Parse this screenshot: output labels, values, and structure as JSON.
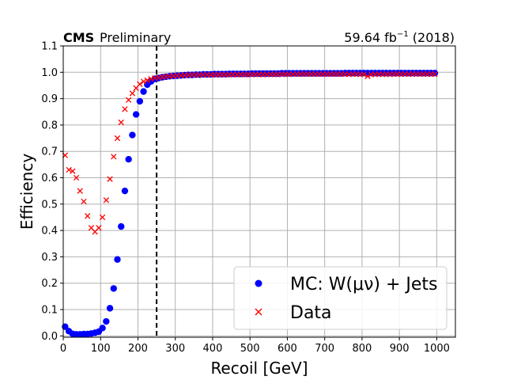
{
  "header": {
    "experiment": "CMS",
    "status": "Preliminary",
    "lumi_value": "59.64 fb",
    "lumi_exp": "−1",
    "lumi_year": " (2018)"
  },
  "chart_data": {
    "type": "scatter",
    "xlabel": "Recoil [GeV]",
    "ylabel": "Efficiency",
    "xlim": [
      0,
      1050
    ],
    "ylim": [
      -0.005,
      1.1
    ],
    "xticks": [
      0,
      100,
      200,
      300,
      400,
      500,
      600,
      700,
      800,
      900,
      1000
    ],
    "yticks": [
      0.0,
      0.1,
      0.2,
      0.3,
      0.4,
      0.5,
      0.6,
      0.7,
      0.8,
      0.9,
      1.0,
      1.1
    ],
    "ytick_labels": [
      "0.0",
      "0.1",
      "0.2",
      "0.3",
      "0.4",
      "0.5",
      "0.6",
      "0.7",
      "0.8",
      "0.9",
      "1.0",
      "1.1"
    ],
    "grid": true,
    "vline": 250,
    "legend": {
      "placement": "lower right",
      "mc_label": "MC: W(μν) + Jets",
      "data_label": "Data"
    },
    "series": [
      {
        "name": "MC: W(μν) + Jets",
        "marker": "circle",
        "color": "#0000ff",
        "x": [
          5,
          15,
          25,
          35,
          45,
          55,
          65,
          75,
          85,
          95,
          105,
          115,
          125,
          135,
          145,
          155,
          165,
          175,
          185,
          195,
          205,
          215,
          225,
          235,
          245,
          255,
          265,
          275,
          285,
          295,
          305,
          315,
          325,
          335,
          345,
          355,
          365,
          375,
          385,
          395,
          405,
          415,
          425,
          435,
          445,
          455,
          465,
          475,
          485,
          495,
          505,
          515,
          525,
          535,
          545,
          555,
          565,
          575,
          585,
          595,
          605,
          615,
          625,
          635,
          645,
          655,
          665,
          675,
          685,
          695,
          705,
          715,
          725,
          735,
          745,
          755,
          765,
          775,
          785,
          795,
          805,
          815,
          825,
          835,
          845,
          855,
          865,
          875,
          885,
          895,
          905,
          915,
          925,
          935,
          945,
          955,
          965,
          975,
          985,
          995
        ],
        "y": [
          0.035,
          0.018,
          0.008,
          0.006,
          0.006,
          0.007,
          0.007,
          0.009,
          0.012,
          0.016,
          0.03,
          0.055,
          0.105,
          0.18,
          0.29,
          0.415,
          0.55,
          0.67,
          0.762,
          0.84,
          0.89,
          0.927,
          0.953,
          0.965,
          0.975,
          0.978,
          0.981,
          0.983,
          0.985,
          0.986,
          0.987,
          0.988,
          0.989,
          0.99,
          0.99,
          0.991,
          0.991,
          0.992,
          0.992,
          0.992,
          0.993,
          0.993,
          0.993,
          0.993,
          0.994,
          0.994,
          0.994,
          0.994,
          0.994,
          0.994,
          0.995,
          0.995,
          0.995,
          0.995,
          0.995,
          0.995,
          0.995,
          0.995,
          0.996,
          0.996,
          0.996,
          0.996,
          0.996,
          0.996,
          0.996,
          0.996,
          0.996,
          0.996,
          0.996,
          0.996,
          0.996,
          0.996,
          0.996,
          0.996,
          0.996,
          0.997,
          0.997,
          0.997,
          0.997,
          0.997,
          0.997,
          0.997,
          0.997,
          0.997,
          0.997,
          0.997,
          0.997,
          0.997,
          0.997,
          0.997,
          0.997,
          0.997,
          0.997,
          0.997,
          0.997,
          0.997,
          0.997,
          0.997,
          0.997,
          0.997
        ]
      },
      {
        "name": "Data",
        "marker": "x",
        "color": "#ff0000",
        "x": [
          5,
          15,
          25,
          35,
          45,
          55,
          65,
          75,
          85,
          95,
          105,
          115,
          125,
          135,
          145,
          155,
          165,
          175,
          185,
          195,
          205,
          215,
          225,
          235,
          245,
          255,
          265,
          275,
          285,
          295,
          305,
          315,
          325,
          335,
          345,
          355,
          365,
          375,
          385,
          395,
          405,
          415,
          425,
          435,
          445,
          455,
          465,
          475,
          485,
          495,
          505,
          515,
          525,
          535,
          545,
          555,
          565,
          575,
          585,
          595,
          605,
          615,
          625,
          635,
          645,
          655,
          665,
          675,
          685,
          695,
          705,
          715,
          725,
          735,
          745,
          755,
          765,
          775,
          785,
          795,
          805,
          815,
          825,
          835,
          845,
          855,
          865,
          875,
          885,
          895,
          905,
          915,
          925,
          935,
          945,
          955,
          965,
          975,
          985,
          995
        ],
        "y": [
          0.685,
          0.63,
          0.625,
          0.6,
          0.55,
          0.51,
          0.455,
          0.41,
          0.395,
          0.41,
          0.45,
          0.515,
          0.595,
          0.68,
          0.75,
          0.81,
          0.86,
          0.895,
          0.92,
          0.94,
          0.955,
          0.965,
          0.97,
          0.975,
          0.978,
          0.98,
          0.982,
          0.984,
          0.985,
          0.986,
          0.987,
          0.988,
          0.989,
          0.989,
          0.99,
          0.99,
          0.99,
          0.99,
          0.991,
          0.99,
          0.991,
          0.991,
          0.991,
          0.991,
          0.991,
          0.991,
          0.991,
          0.992,
          0.991,
          0.992,
          0.991,
          0.992,
          0.992,
          0.991,
          0.992,
          0.992,
          0.992,
          0.992,
          0.992,
          0.993,
          0.992,
          0.993,
          0.993,
          0.993,
          0.993,
          0.993,
          0.993,
          0.993,
          0.993,
          0.993,
          0.993,
          0.993,
          0.993,
          0.993,
          0.993,
          0.993,
          0.992,
          0.993,
          0.993,
          0.992,
          0.992,
          0.985,
          0.992,
          0.992,
          0.993,
          0.992,
          0.993,
          0.992,
          0.993,
          0.993,
          0.993,
          0.993,
          0.993,
          0.993,
          0.993,
          0.993,
          0.993,
          0.993,
          0.993,
          0.993
        ]
      }
    ]
  }
}
